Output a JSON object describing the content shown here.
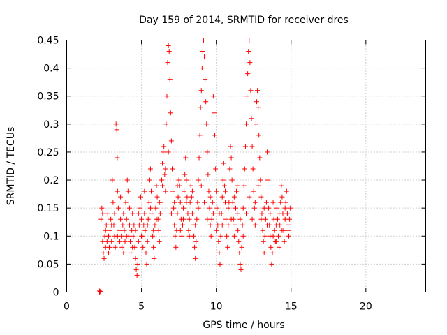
{
  "chart_data": {
    "type": "scatter",
    "title": "Day 159 of 2014, SRMTID for receiver dres",
    "xlabel": "GPS time / hours",
    "ylabel": "SRMTID / TECUs",
    "xlim": [
      0,
      24
    ],
    "ylim": [
      0,
      0.45
    ],
    "x_ticks": [
      0,
      5,
      10,
      15,
      20
    ],
    "x_tick_labels": [
      "0",
      "5",
      "10",
      "15",
      "20"
    ],
    "y_ticks": [
      0,
      0.05,
      0.1,
      0.15,
      0.2,
      0.25,
      0.3,
      0.35,
      0.4,
      0.45
    ],
    "y_tick_labels": [
      "0",
      "0.05",
      "0.1",
      "0.15",
      "0.2",
      "0.25",
      "0.3",
      "0.35",
      "0.4",
      "0.45"
    ],
    "grid": true,
    "marker": "plus",
    "color": "#ff0000",
    "series": [
      {
        "values": [
          [
            2.2,
            0.0
          ],
          [
            2.2,
            0.002
          ],
          [
            2.25,
            0.001
          ],
          [
            2.3,
            0.13
          ],
          [
            2.35,
            0.15
          ],
          [
            2.4,
            0.09
          ],
          [
            2.45,
            0.07
          ],
          [
            2.5,
            0.06
          ],
          [
            2.55,
            0.1
          ],
          [
            2.6,
            0.08
          ],
          [
            2.65,
            0.12
          ],
          [
            2.7,
            0.09
          ],
          [
            2.75,
            0.14
          ],
          [
            2.8,
            0.1
          ],
          [
            2.85,
            0.08
          ],
          [
            2.9,
            0.11
          ],
          [
            2.95,
            0.13
          ],
          [
            3.0,
            0.09
          ],
          [
            3.05,
            0.2
          ],
          [
            3.1,
            0.16
          ],
          [
            3.15,
            0.12
          ],
          [
            3.2,
            0.1
          ],
          [
            3.25,
            0.08
          ],
          [
            3.3,
            0.3
          ],
          [
            3.35,
            0.29
          ],
          [
            3.38,
            0.24
          ],
          [
            3.4,
            0.18
          ],
          [
            3.45,
            0.15
          ],
          [
            3.5,
            0.11
          ],
          [
            3.55,
            0.09
          ],
          [
            3.6,
            0.13
          ],
          [
            3.65,
            0.1
          ],
          [
            3.7,
            0.08
          ],
          [
            3.75,
            0.12
          ],
          [
            3.8,
            0.14
          ],
          [
            3.85,
            0.11
          ],
          [
            3.9,
            0.09
          ],
          [
            3.95,
            0.16
          ],
          [
            4.0,
            0.13
          ],
          [
            4.05,
            0.2
          ],
          [
            4.1,
            0.18
          ],
          [
            4.15,
            0.1
          ],
          [
            4.2,
            0.12
          ],
          [
            4.25,
            0.09
          ],
          [
            4.3,
            0.07
          ],
          [
            4.35,
            0.11
          ],
          [
            4.4,
            0.14
          ],
          [
            4.45,
            0.1
          ],
          [
            4.5,
            0.12
          ],
          [
            4.55,
            0.08
          ],
          [
            4.6,
            0.06
          ],
          [
            4.65,
            0.04
          ],
          [
            4.7,
            0.03
          ],
          [
            4.75,
            0.05
          ],
          [
            4.8,
            0.09
          ],
          [
            4.85,
            0.12
          ],
          [
            4.9,
            0.15
          ],
          [
            4.95,
            0.17
          ],
          [
            5.0,
            0.13
          ],
          [
            5.05,
            0.1
          ],
          [
            5.1,
            0.08
          ],
          [
            5.15,
            0.12
          ],
          [
            5.2,
            0.14
          ],
          [
            5.25,
            0.11
          ],
          [
            5.3,
            0.07
          ],
          [
            5.35,
            0.05
          ],
          [
            5.4,
            0.09
          ],
          [
            5.45,
            0.13
          ],
          [
            5.5,
            0.16
          ],
          [
            5.55,
            0.2
          ],
          [
            5.6,
            0.22
          ],
          [
            5.65,
            0.18
          ],
          [
            5.7,
            0.14
          ],
          [
            5.75,
            0.1
          ],
          [
            5.8,
            0.08
          ],
          [
            5.85,
            0.06
          ],
          [
            5.9,
            0.12
          ],
          [
            5.95,
            0.15
          ],
          [
            6.0,
            0.19
          ],
          [
            6.05,
            0.17
          ],
          [
            6.1,
            0.13
          ],
          [
            6.15,
            0.11
          ],
          [
            6.2,
            0.09
          ],
          [
            6.25,
            0.14
          ],
          [
            6.3,
            0.16
          ],
          [
            6.35,
            0.2
          ],
          [
            6.4,
            0.23
          ],
          [
            6.45,
            0.25
          ],
          [
            6.5,
            0.26
          ],
          [
            6.55,
            0.21
          ],
          [
            6.6,
            0.18
          ],
          [
            6.65,
            0.3
          ],
          [
            6.7,
            0.35
          ],
          [
            6.75,
            0.41
          ],
          [
            6.8,
            0.44
          ],
          [
            6.85,
            0.43
          ],
          [
            6.9,
            0.38
          ],
          [
            6.95,
            0.32
          ],
          [
            7.0,
            0.27
          ],
          [
            7.05,
            0.22
          ],
          [
            7.1,
            0.18
          ],
          [
            7.15,
            0.15
          ],
          [
            7.2,
            0.12
          ],
          [
            7.25,
            0.1
          ],
          [
            7.3,
            0.08
          ],
          [
            7.35,
            0.11
          ],
          [
            7.4,
            0.14
          ],
          [
            7.45,
            0.17
          ],
          [
            7.5,
            0.2
          ],
          [
            7.55,
            0.19
          ],
          [
            7.6,
            0.16
          ],
          [
            7.65,
            0.13
          ],
          [
            7.7,
            0.1
          ],
          [
            7.75,
            0.12
          ],
          [
            7.8,
            0.15
          ],
          [
            7.85,
            0.18
          ],
          [
            7.9,
            0.21
          ],
          [
            7.95,
            0.24
          ],
          [
            8.0,
            0.2
          ],
          [
            8.05,
            0.17
          ],
          [
            8.1,
            0.14
          ],
          [
            8.15,
            0.11
          ],
          [
            8.2,
            0.13
          ],
          [
            8.25,
            0.16
          ],
          [
            8.3,
            0.19
          ],
          [
            8.35,
            0.17
          ],
          [
            8.4,
            0.14
          ],
          [
            8.45,
            0.12
          ],
          [
            8.5,
            0.1
          ],
          [
            8.55,
            0.08
          ],
          [
            8.6,
            0.06
          ],
          [
            8.65,
            0.09
          ],
          [
            8.7,
            0.13
          ],
          [
            8.75,
            0.16
          ],
          [
            8.8,
            0.2
          ],
          [
            8.85,
            0.24
          ],
          [
            8.9,
            0.28
          ],
          [
            8.95,
            0.33
          ],
          [
            9.0,
            0.36
          ],
          [
            9.05,
            0.4
          ],
          [
            9.1,
            0.43
          ],
          [
            9.15,
            0.45
          ],
          [
            9.2,
            0.42
          ],
          [
            9.25,
            0.38
          ],
          [
            9.3,
            0.34
          ],
          [
            9.35,
            0.3
          ],
          [
            9.4,
            0.25
          ],
          [
            9.45,
            0.21
          ],
          [
            9.5,
            0.18
          ],
          [
            9.55,
            0.15
          ],
          [
            9.6,
            0.12
          ],
          [
            9.65,
            0.1
          ],
          [
            9.7,
            0.13
          ],
          [
            9.75,
            0.16
          ],
          [
            9.8,
            0.35
          ],
          [
            9.85,
            0.32
          ],
          [
            9.9,
            0.28
          ],
          [
            9.95,
            0.22
          ],
          [
            10.0,
            0.18
          ],
          [
            10.05,
            0.15
          ],
          [
            10.1,
            0.12
          ],
          [
            10.15,
            0.09
          ],
          [
            10.2,
            0.07
          ],
          [
            10.25,
            0.05
          ],
          [
            10.3,
            0.1
          ],
          [
            10.35,
            0.14
          ],
          [
            10.4,
            0.17
          ],
          [
            10.45,
            0.2
          ],
          [
            10.5,
            0.23
          ],
          [
            10.55,
            0.19
          ],
          [
            10.6,
            0.16
          ],
          [
            10.65,
            0.13
          ],
          [
            10.7,
            0.1
          ],
          [
            10.75,
            0.08
          ],
          [
            10.8,
            0.12
          ],
          [
            10.85,
            0.16
          ],
          [
            10.9,
            0.22
          ],
          [
            10.95,
            0.26
          ],
          [
            11.0,
            0.24
          ],
          [
            11.05,
            0.2
          ],
          [
            11.1,
            0.16
          ],
          [
            11.15,
            0.13
          ],
          [
            11.2,
            0.1
          ],
          [
            11.25,
            0.12
          ],
          [
            11.3,
            0.15
          ],
          [
            11.35,
            0.18
          ],
          [
            11.4,
            0.14
          ],
          [
            11.45,
            0.11
          ],
          [
            11.5,
            0.09
          ],
          [
            11.55,
            0.07
          ],
          [
            11.6,
            0.05
          ],
          [
            11.65,
            0.04
          ],
          [
            11.7,
            0.08
          ],
          [
            11.75,
            0.12
          ],
          [
            11.8,
            0.15
          ],
          [
            11.85,
            0.19
          ],
          [
            11.9,
            0.22
          ],
          [
            11.95,
            0.26
          ],
          [
            12.0,
            0.3
          ],
          [
            12.05,
            0.35
          ],
          [
            12.1,
            0.39
          ],
          [
            12.15,
            0.43
          ],
          [
            12.2,
            0.45
          ],
          [
            12.25,
            0.41
          ],
          [
            12.3,
            0.36
          ],
          [
            12.35,
            0.31
          ],
          [
            12.4,
            0.26
          ],
          [
            12.45,
            0.22
          ],
          [
            12.5,
            0.18
          ],
          [
            12.55,
            0.15
          ],
          [
            12.6,
            0.12
          ],
          [
            12.65,
            0.3
          ],
          [
            12.7,
            0.34
          ],
          [
            12.75,
            0.36
          ],
          [
            12.8,
            0.33
          ],
          [
            12.85,
            0.28
          ],
          [
            12.9,
            0.24
          ],
          [
            12.95,
            0.2
          ],
          [
            13.0,
            0.17
          ],
          [
            13.05,
            0.14
          ],
          [
            13.1,
            0.11
          ],
          [
            13.15,
            0.09
          ],
          [
            13.2,
            0.07
          ],
          [
            13.25,
            0.1
          ],
          [
            13.3,
            0.13
          ],
          [
            13.35,
            0.16
          ],
          [
            13.4,
            0.25
          ],
          [
            13.45,
            0.2
          ],
          [
            13.5,
            0.15
          ],
          [
            13.55,
            0.12
          ],
          [
            13.6,
            0.1
          ],
          [
            13.65,
            0.08
          ],
          [
            13.7,
            0.05
          ],
          [
            13.75,
            0.07
          ],
          [
            13.8,
            0.1
          ],
          [
            13.85,
            0.13
          ],
          [
            13.9,
            0.11
          ],
          [
            13.95,
            0.09
          ],
          [
            14.0,
            0.12
          ],
          [
            14.05,
            0.15
          ],
          [
            14.1,
            0.13
          ],
          [
            14.15,
            0.1
          ],
          [
            14.2,
            0.08
          ],
          [
            14.25,
            0.12
          ],
          [
            14.3,
            0.16
          ],
          [
            14.35,
            0.19
          ],
          [
            14.4,
            0.17
          ],
          [
            14.45,
            0.14
          ],
          [
            14.5,
            0.11
          ],
          [
            14.55,
            0.09
          ],
          [
            14.6,
            0.13
          ],
          [
            14.65,
            0.16
          ],
          [
            14.7,
            0.18
          ],
          [
            14.75,
            0.14
          ],
          [
            14.8,
            0.11
          ],
          [
            14.85,
            0.1
          ],
          [
            14.9,
            0.13
          ],
          [
            14.95,
            0.15
          ],
          [
            2.4,
            0.14
          ],
          [
            2.6,
            0.11
          ],
          [
            2.8,
            0.07
          ],
          [
            3.0,
            0.12
          ],
          [
            3.2,
            0.14
          ],
          [
            3.4,
            0.1
          ],
          [
            3.6,
            0.17
          ],
          [
            3.8,
            0.07
          ],
          [
            4.0,
            0.1
          ],
          [
            4.2,
            0.15
          ],
          [
            4.4,
            0.08
          ],
          [
            4.6,
            0.11
          ],
          [
            4.8,
            0.14
          ],
          [
            5.0,
            0.1
          ],
          [
            5.2,
            0.18
          ],
          [
            5.4,
            0.12
          ],
          [
            5.6,
            0.15
          ],
          [
            5.8,
            0.11
          ],
          [
            6.0,
            0.13
          ],
          [
            6.2,
            0.16
          ],
          [
            6.4,
            0.19
          ],
          [
            6.6,
            0.22
          ],
          [
            6.8,
            0.25
          ],
          [
            7.0,
            0.14
          ],
          [
            7.2,
            0.16
          ],
          [
            7.4,
            0.19
          ],
          [
            7.6,
            0.11
          ],
          [
            7.8,
            0.13
          ],
          [
            8.0,
            0.16
          ],
          [
            8.2,
            0.1
          ],
          [
            8.4,
            0.18
          ],
          [
            8.6,
            0.12
          ],
          [
            8.8,
            0.15
          ],
          [
            9.0,
            0.19
          ],
          [
            9.2,
            0.16
          ],
          [
            9.4,
            0.13
          ],
          [
            9.6,
            0.17
          ],
          [
            9.8,
            0.14
          ],
          [
            10.0,
            0.11
          ],
          [
            10.2,
            0.14
          ],
          [
            10.4,
            0.12
          ],
          [
            10.6,
            0.18
          ],
          [
            10.8,
            0.15
          ],
          [
            11.0,
            0.13
          ],
          [
            11.2,
            0.17
          ],
          [
            11.4,
            0.19
          ],
          [
            11.6,
            0.13
          ],
          [
            11.8,
            0.1
          ],
          [
            12.0,
            0.14
          ],
          [
            12.2,
            0.17
          ],
          [
            12.4,
            0.13
          ],
          [
            12.6,
            0.16
          ],
          [
            12.8,
            0.19
          ],
          [
            13.0,
            0.13
          ],
          [
            13.2,
            0.15
          ],
          [
            13.4,
            0.12
          ],
          [
            13.6,
            0.14
          ],
          [
            13.8,
            0.16
          ],
          [
            14.0,
            0.09
          ],
          [
            14.2,
            0.14
          ],
          [
            14.4,
            0.11
          ],
          [
            14.6,
            0.15
          ],
          [
            14.8,
            0.12
          ]
        ]
      }
    ]
  }
}
